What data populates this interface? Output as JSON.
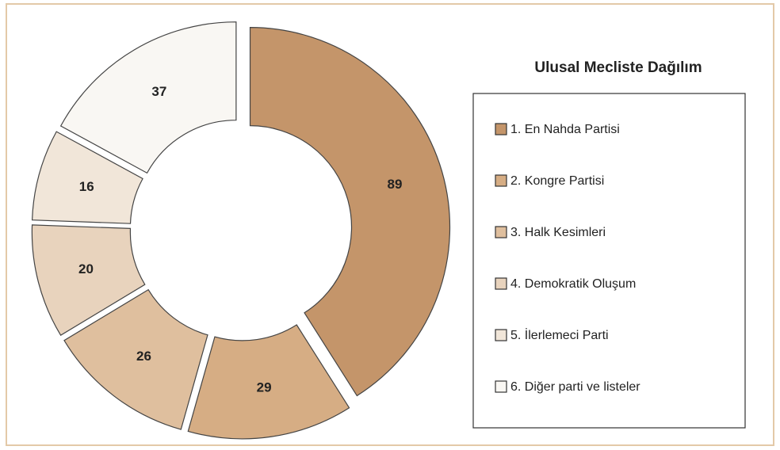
{
  "chart_data": {
    "type": "pie",
    "title": "Ulusal Mecliste Dağılım",
    "categories": [
      "1. En Nahda Partisi",
      "2. Kongre Partisi",
      "3. Halk Kesimleri",
      "4. Demokratik Oluşum",
      "5. İlerlemeci Parti",
      "6. Diğer parti ve listeler"
    ],
    "values": [
      89,
      29,
      26,
      20,
      16,
      37
    ],
    "colors": [
      "#c4956a",
      "#d6ad84",
      "#dfbf9e",
      "#e8d3bd",
      "#f1e6d9",
      "#f9f7f3"
    ]
  }
}
